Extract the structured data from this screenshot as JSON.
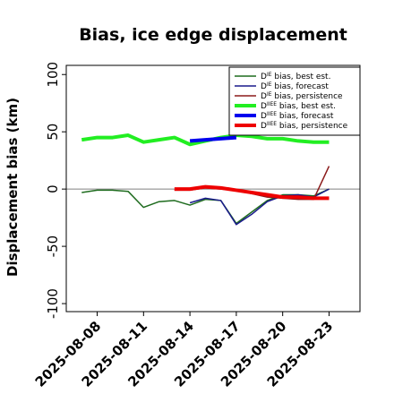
{
  "chart_data": {
    "type": "line",
    "title": "Bias, ice edge displacement",
    "ylabel": "Displacement bias (km)",
    "xlabel": "",
    "ylim": [
      -107,
      108
    ],
    "xlim": [
      "2025-08-06",
      "2025-08-25"
    ],
    "yticks": [
      -100,
      -50,
      0,
      50,
      100
    ],
    "xticks": [
      "2025-08-08",
      "2025-08-11",
      "2025-08-14",
      "2025-08-17",
      "2025-08-20",
      "2025-08-23"
    ],
    "highlight_xtick": "2025-08-14",
    "highlight_color": "#228b22",
    "zero_line_color": "#808080",
    "grid": false,
    "legend_position": "top-right",
    "series": [
      {
        "name_prefix": "D",
        "name_sup": "IE",
        "name_suffix": " bias, best est.",
        "color": "#1e6b1e",
        "linewidth": 1.5,
        "x": [
          "2025-08-07",
          "2025-08-08",
          "2025-08-09",
          "2025-08-10",
          "2025-08-11",
          "2025-08-12",
          "2025-08-13",
          "2025-08-14",
          "2025-08-15",
          "2025-08-16",
          "2025-08-17",
          "2025-08-18",
          "2025-08-19",
          "2025-08-20",
          "2025-08-21",
          "2025-08-22",
          "2025-08-23"
        ],
        "y": [
          -3,
          -1,
          -1,
          -2,
          -16,
          -11,
          -10,
          -14,
          -9,
          -10,
          -30,
          -20,
          -10,
          -5,
          -5,
          -6,
          0
        ]
      },
      {
        "name_prefix": "D",
        "name_sup": "IE",
        "name_suffix": " bias, forecast",
        "color": "#1a1a8c",
        "linewidth": 1.5,
        "x": [
          "2025-08-14",
          "2025-08-15",
          "2025-08-16",
          "2025-08-17",
          "2025-08-18",
          "2025-08-19",
          "2025-08-20",
          "2025-08-21",
          "2025-08-22",
          "2025-08-23"
        ],
        "y": [
          -12,
          -8,
          -10,
          -31,
          -22,
          -11,
          -6,
          -5,
          -7,
          0
        ]
      },
      {
        "name_prefix": "D",
        "name_sup": "IE",
        "name_suffix": " bias, persistence",
        "color": "#8b1a1a",
        "linewidth": 1.5,
        "x": [
          "2025-08-13",
          "2025-08-14",
          "2025-08-15",
          "2025-08-16",
          "2025-08-17",
          "2025-08-18",
          "2025-08-19",
          "2025-08-20",
          "2025-08-21",
          "2025-08-22",
          "2025-08-23"
        ],
        "y": [
          -1,
          -1,
          1,
          0,
          -1,
          -4,
          -7,
          -8,
          -9,
          -9,
          20
        ]
      },
      {
        "name_prefix": "D",
        "name_sup": "IIEE",
        "name_suffix": " bias, best est.",
        "color": "#22ee22",
        "linewidth": 4,
        "x": [
          "2025-08-07",
          "2025-08-08",
          "2025-08-09",
          "2025-08-10",
          "2025-08-11",
          "2025-08-12",
          "2025-08-13",
          "2025-08-14",
          "2025-08-15",
          "2025-08-16",
          "2025-08-17",
          "2025-08-18",
          "2025-08-19",
          "2025-08-20",
          "2025-08-21",
          "2025-08-22",
          "2025-08-23"
        ],
        "y": [
          43,
          45,
          45,
          47,
          41,
          43,
          45,
          39,
          42,
          45,
          47,
          46,
          44,
          44,
          42,
          41,
          41
        ]
      },
      {
        "name_prefix": "D",
        "name_sup": "IIEE",
        "name_suffix": " bias, forecast",
        "color": "#0000ee",
        "linewidth": 4,
        "x": [
          "2025-08-14",
          "2025-08-15",
          "2025-08-16",
          "2025-08-17"
        ],
        "y": [
          42,
          43,
          44,
          45
        ]
      },
      {
        "name_prefix": "D",
        "name_sup": "IIEE",
        "name_suffix": " bias, persistence",
        "color": "#ee0000",
        "linewidth": 4,
        "x": [
          "2025-08-13",
          "2025-08-14",
          "2025-08-15",
          "2025-08-16",
          "2025-08-17",
          "2025-08-18",
          "2025-08-19",
          "2025-08-20",
          "2025-08-21",
          "2025-08-22",
          "2025-08-23"
        ],
        "y": [
          0,
          0,
          2,
          1,
          -1,
          -3,
          -5,
          -7,
          -7,
          -8,
          -8
        ]
      }
    ]
  }
}
